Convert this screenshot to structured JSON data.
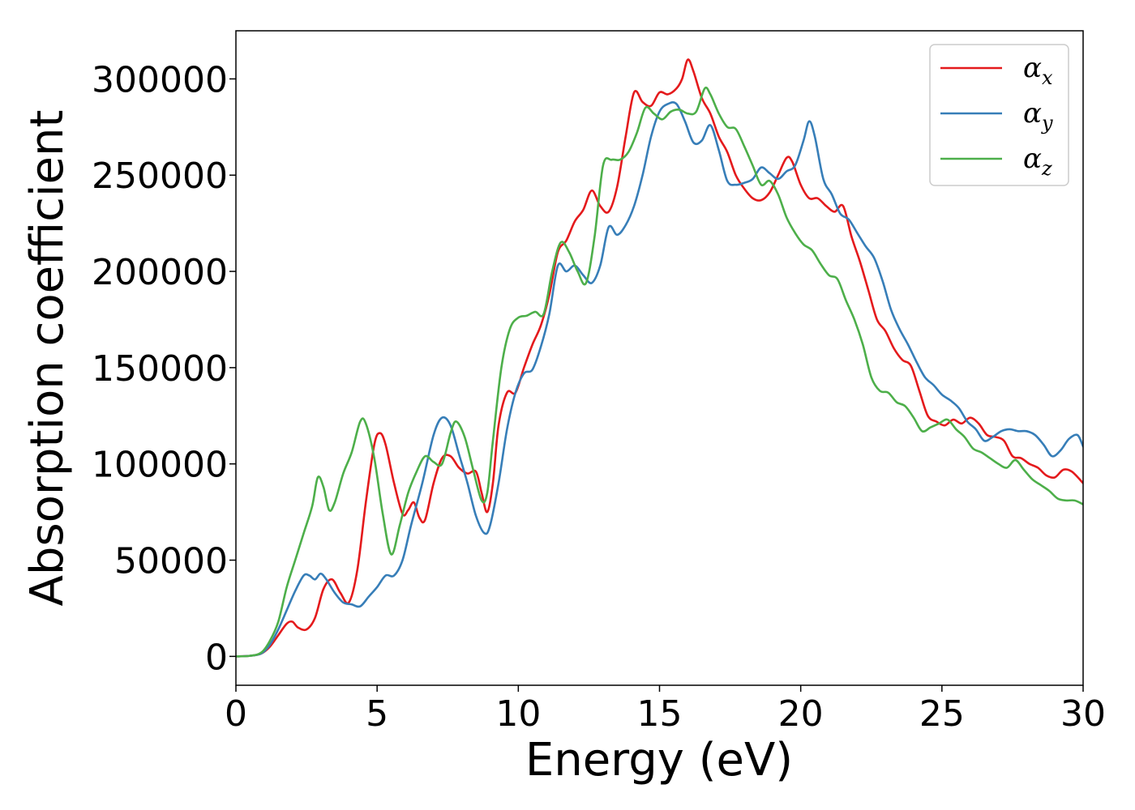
{
  "chart_data": {
    "type": "line",
    "title": "",
    "xlabel": "Energy (eV)",
    "ylabel": "Absorption coefficient",
    "xlim": [
      0,
      30
    ],
    "ylim": [
      -15000,
      325000
    ],
    "x_ticks": [
      0,
      5,
      10,
      15,
      20,
      25,
      30
    ],
    "y_ticks": [
      0,
      50000,
      100000,
      150000,
      200000,
      250000,
      300000
    ],
    "grid": false,
    "legend_position": "top-right",
    "series": [
      {
        "name": "αx",
        "legend_base": "α",
        "legend_sub": "x",
        "color": "#e41a1c",
        "points": [
          [
            0,
            0
          ],
          [
            0.5,
            300
          ],
          [
            0.9,
            1500
          ],
          [
            1.2,
            5000
          ],
          [
            1.5,
            11000
          ],
          [
            1.8,
            17000
          ],
          [
            2.0,
            18000
          ],
          [
            2.2,
            15000
          ],
          [
            2.5,
            14000
          ],
          [
            2.8,
            20000
          ],
          [
            3.1,
            35000
          ],
          [
            3.4,
            40000
          ],
          [
            3.7,
            33000
          ],
          [
            4.0,
            28000
          ],
          [
            4.3,
            45000
          ],
          [
            4.6,
            80000
          ],
          [
            4.9,
            110000
          ],
          [
            5.1,
            116000
          ],
          [
            5.3,
            110000
          ],
          [
            5.6,
            90000
          ],
          [
            5.9,
            74000
          ],
          [
            6.1,
            76000
          ],
          [
            6.3,
            80000
          ],
          [
            6.5,
            72000
          ],
          [
            6.7,
            71000
          ],
          [
            7.0,
            90000
          ],
          [
            7.3,
            103000
          ],
          [
            7.6,
            104000
          ],
          [
            7.9,
            98000
          ],
          [
            8.2,
            95000
          ],
          [
            8.5,
            96000
          ],
          [
            8.7,
            85000
          ],
          [
            8.9,
            75000
          ],
          [
            9.1,
            90000
          ],
          [
            9.3,
            120000
          ],
          [
            9.6,
            137000
          ],
          [
            9.9,
            137000
          ],
          [
            10.2,
            150000
          ],
          [
            10.5,
            162000
          ],
          [
            10.8,
            172000
          ],
          [
            11.1,
            188000
          ],
          [
            11.4,
            210000
          ],
          [
            11.7,
            216000
          ],
          [
            12.0,
            226000
          ],
          [
            12.3,
            232000
          ],
          [
            12.6,
            242000
          ],
          [
            12.9,
            234000
          ],
          [
            13.2,
            231000
          ],
          [
            13.5,
            244000
          ],
          [
            13.8,
            270000
          ],
          [
            14.1,
            293000
          ],
          [
            14.4,
            288000
          ],
          [
            14.7,
            286000
          ],
          [
            15.0,
            293000
          ],
          [
            15.3,
            292000
          ],
          [
            15.6,
            295000
          ],
          [
            15.8,
            300000
          ],
          [
            16.0,
            310000
          ],
          [
            16.2,
            304000
          ],
          [
            16.5,
            290000
          ],
          [
            16.8,
            282000
          ],
          [
            17.1,
            270000
          ],
          [
            17.4,
            262000
          ],
          [
            17.7,
            250000
          ],
          [
            18.0,
            243000
          ],
          [
            18.3,
            238000
          ],
          [
            18.6,
            237000
          ],
          [
            18.9,
            241000
          ],
          [
            19.2,
            250000
          ],
          [
            19.5,
            259000
          ],
          [
            19.7,
            257000
          ],
          [
            20.0,
            245000
          ],
          [
            20.3,
            238000
          ],
          [
            20.6,
            238000
          ],
          [
            20.9,
            234000
          ],
          [
            21.2,
            231000
          ],
          [
            21.5,
            234000
          ],
          [
            21.8,
            218000
          ],
          [
            22.1,
            205000
          ],
          [
            22.4,
            190000
          ],
          [
            22.7,
            175000
          ],
          [
            23.0,
            169000
          ],
          [
            23.3,
            160000
          ],
          [
            23.6,
            154000
          ],
          [
            23.9,
            151000
          ],
          [
            24.2,
            138000
          ],
          [
            24.5,
            125000
          ],
          [
            24.8,
            122000
          ],
          [
            25.1,
            120000
          ],
          [
            25.4,
            123000
          ],
          [
            25.7,
            121000
          ],
          [
            26.0,
            124000
          ],
          [
            26.3,
            121000
          ],
          [
            26.6,
            115000
          ],
          [
            26.9,
            114000
          ],
          [
            27.2,
            112000
          ],
          [
            27.5,
            104000
          ],
          [
            27.8,
            103000
          ],
          [
            28.1,
            100000
          ],
          [
            28.4,
            98000
          ],
          [
            28.7,
            94000
          ],
          [
            29.0,
            93000
          ],
          [
            29.3,
            97000
          ],
          [
            29.6,
            96000
          ],
          [
            30.0,
            90000
          ]
        ]
      },
      {
        "name": "αy",
        "legend_base": "α",
        "legend_sub": "y",
        "color": "#377eb8",
        "points": [
          [
            0,
            0
          ],
          [
            0.5,
            300
          ],
          [
            0.9,
            1500
          ],
          [
            1.2,
            6000
          ],
          [
            1.5,
            14000
          ],
          [
            1.8,
            24000
          ],
          [
            2.1,
            34000
          ],
          [
            2.4,
            42000
          ],
          [
            2.6,
            42000
          ],
          [
            2.8,
            40000
          ],
          [
            3.0,
            43000
          ],
          [
            3.2,
            40000
          ],
          [
            3.5,
            33000
          ],
          [
            3.8,
            28000
          ],
          [
            4.1,
            27000
          ],
          [
            4.4,
            26000
          ],
          [
            4.7,
            31000
          ],
          [
            5.0,
            36000
          ],
          [
            5.3,
            42000
          ],
          [
            5.6,
            42000
          ],
          [
            5.9,
            50000
          ],
          [
            6.2,
            68000
          ],
          [
            6.6,
            90000
          ],
          [
            7.0,
            115000
          ],
          [
            7.3,
            124000
          ],
          [
            7.6,
            120000
          ],
          [
            7.9,
            105000
          ],
          [
            8.2,
            90000
          ],
          [
            8.5,
            73000
          ],
          [
            8.8,
            64000
          ],
          [
            9.0,
            68000
          ],
          [
            9.3,
            90000
          ],
          [
            9.6,
            118000
          ],
          [
            9.9,
            137000
          ],
          [
            10.2,
            147000
          ],
          [
            10.5,
            149000
          ],
          [
            10.8,
            161000
          ],
          [
            11.1,
            178000
          ],
          [
            11.4,
            203000
          ],
          [
            11.7,
            200000
          ],
          [
            12.0,
            203000
          ],
          [
            12.3,
            198000
          ],
          [
            12.6,
            194000
          ],
          [
            12.9,
            203000
          ],
          [
            13.2,
            223000
          ],
          [
            13.5,
            219000
          ],
          [
            13.8,
            224000
          ],
          [
            14.1,
            234000
          ],
          [
            14.4,
            250000
          ],
          [
            14.7,
            270000
          ],
          [
            15.0,
            283000
          ],
          [
            15.3,
            287000
          ],
          [
            15.6,
            287000
          ],
          [
            15.9,
            278000
          ],
          [
            16.2,
            267000
          ],
          [
            16.5,
            268000
          ],
          [
            16.8,
            276000
          ],
          [
            17.1,
            263000
          ],
          [
            17.4,
            247000
          ],
          [
            17.7,
            245000
          ],
          [
            18.0,
            246000
          ],
          [
            18.3,
            248000
          ],
          [
            18.6,
            254000
          ],
          [
            18.9,
            251000
          ],
          [
            19.2,
            248000
          ],
          [
            19.5,
            252000
          ],
          [
            19.8,
            255000
          ],
          [
            20.1,
            268000
          ],
          [
            20.3,
            278000
          ],
          [
            20.5,
            270000
          ],
          [
            20.8,
            248000
          ],
          [
            21.1,
            240000
          ],
          [
            21.4,
            230000
          ],
          [
            21.7,
            227000
          ],
          [
            22.0,
            220000
          ],
          [
            22.3,
            213000
          ],
          [
            22.6,
            207000
          ],
          [
            22.9,
            195000
          ],
          [
            23.2,
            180000
          ],
          [
            23.5,
            170000
          ],
          [
            23.8,
            162000
          ],
          [
            24.1,
            153000
          ],
          [
            24.4,
            145000
          ],
          [
            24.7,
            141000
          ],
          [
            25.0,
            136000
          ],
          [
            25.3,
            133000
          ],
          [
            25.6,
            129000
          ],
          [
            25.9,
            122000
          ],
          [
            26.2,
            118000
          ],
          [
            26.5,
            112000
          ],
          [
            26.8,
            114000
          ],
          [
            27.1,
            117000
          ],
          [
            27.4,
            118000
          ],
          [
            27.7,
            117000
          ],
          [
            28.0,
            117000
          ],
          [
            28.3,
            115000
          ],
          [
            28.6,
            110000
          ],
          [
            28.9,
            104000
          ],
          [
            29.2,
            107000
          ],
          [
            29.5,
            113000
          ],
          [
            29.8,
            115000
          ],
          [
            30.0,
            109000
          ]
        ]
      },
      {
        "name": "αz",
        "legend_base": "α",
        "legend_sub": "z",
        "color": "#4daf4a",
        "points": [
          [
            0,
            0
          ],
          [
            0.5,
            300
          ],
          [
            0.9,
            2000
          ],
          [
            1.2,
            8000
          ],
          [
            1.5,
            18000
          ],
          [
            1.8,
            36000
          ],
          [
            2.1,
            50000
          ],
          [
            2.4,
            64000
          ],
          [
            2.7,
            78000
          ],
          [
            2.9,
            93000
          ],
          [
            3.1,
            88000
          ],
          [
            3.3,
            76000
          ],
          [
            3.5,
            80000
          ],
          [
            3.8,
            95000
          ],
          [
            4.1,
            106000
          ],
          [
            4.4,
            122000
          ],
          [
            4.6,
            121000
          ],
          [
            4.9,
            103000
          ],
          [
            5.2,
            74000
          ],
          [
            5.5,
            53000
          ],
          [
            5.8,
            68000
          ],
          [
            6.1,
            85000
          ],
          [
            6.4,
            96000
          ],
          [
            6.7,
            104000
          ],
          [
            7.0,
            101000
          ],
          [
            7.3,
            100000
          ],
          [
            7.6,
            116000
          ],
          [
            7.8,
            122000
          ],
          [
            8.1,
            114000
          ],
          [
            8.4,
            97000
          ],
          [
            8.7,
            81000
          ],
          [
            8.9,
            85000
          ],
          [
            9.1,
            112000
          ],
          [
            9.4,
            150000
          ],
          [
            9.7,
            170000
          ],
          [
            10.0,
            176000
          ],
          [
            10.3,
            177000
          ],
          [
            10.6,
            179000
          ],
          [
            10.9,
            178000
          ],
          [
            11.2,
            200000
          ],
          [
            11.5,
            215000
          ],
          [
            11.8,
            210000
          ],
          [
            12.1,
            200000
          ],
          [
            12.4,
            194000
          ],
          [
            12.7,
            218000
          ],
          [
            13.0,
            255000
          ],
          [
            13.3,
            258000
          ],
          [
            13.6,
            258000
          ],
          [
            13.9,
            262000
          ],
          [
            14.2,
            272000
          ],
          [
            14.5,
            285000
          ],
          [
            14.8,
            282000
          ],
          [
            15.1,
            279000
          ],
          [
            15.4,
            283000
          ],
          [
            15.7,
            284000
          ],
          [
            16.0,
            282000
          ],
          [
            16.3,
            283000
          ],
          [
            16.6,
            295000
          ],
          [
            16.8,
            292000
          ],
          [
            17.1,
            282000
          ],
          [
            17.4,
            275000
          ],
          [
            17.7,
            274000
          ],
          [
            18.0,
            265000
          ],
          [
            18.3,
            255000
          ],
          [
            18.6,
            245000
          ],
          [
            18.9,
            247000
          ],
          [
            19.2,
            240000
          ],
          [
            19.5,
            228000
          ],
          [
            19.8,
            220000
          ],
          [
            20.1,
            214000
          ],
          [
            20.4,
            211000
          ],
          [
            20.7,
            204000
          ],
          [
            21.0,
            198000
          ],
          [
            21.3,
            196000
          ],
          [
            21.6,
            185000
          ],
          [
            21.9,
            175000
          ],
          [
            22.2,
            162000
          ],
          [
            22.5,
            145000
          ],
          [
            22.8,
            138000
          ],
          [
            23.1,
            137000
          ],
          [
            23.4,
            132000
          ],
          [
            23.7,
            130000
          ],
          [
            24.0,
            124000
          ],
          [
            24.3,
            117000
          ],
          [
            24.6,
            119000
          ],
          [
            24.9,
            121000
          ],
          [
            25.2,
            123000
          ],
          [
            25.5,
            118000
          ],
          [
            25.8,
            114000
          ],
          [
            26.1,
            108000
          ],
          [
            26.4,
            106000
          ],
          [
            26.7,
            103000
          ],
          [
            27.0,
            100000
          ],
          [
            27.3,
            98000
          ],
          [
            27.6,
            102000
          ],
          [
            27.9,
            97000
          ],
          [
            28.2,
            92000
          ],
          [
            28.5,
            89000
          ],
          [
            28.8,
            86000
          ],
          [
            29.1,
            82000
          ],
          [
            29.4,
            81000
          ],
          [
            29.7,
            81000
          ],
          [
            30.0,
            79000
          ]
        ]
      }
    ]
  }
}
